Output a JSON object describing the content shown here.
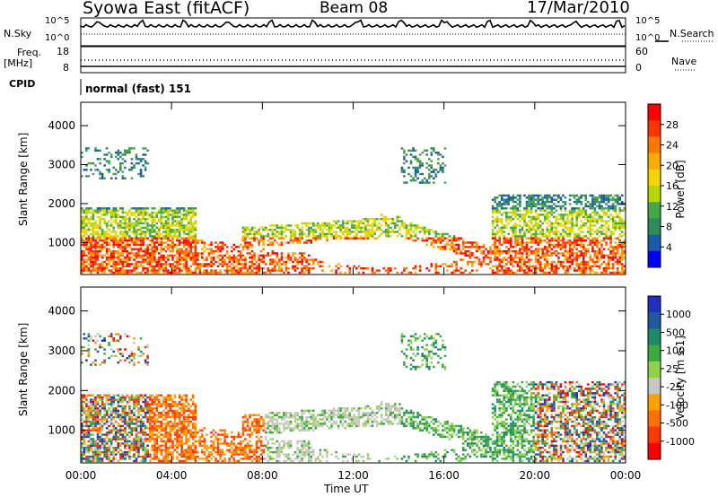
{
  "header": {
    "station": "Syowa East (fitACF)",
    "beam": "Beam 08",
    "date": "17/Mar/2010"
  },
  "status": {
    "nsky_label": "N.Sky",
    "nsearch_label": "N.Search",
    "noise_ticks_left": [
      "10^5",
      "10^0"
    ],
    "noise_ticks_right": [
      "10^5",
      "10^0"
    ],
    "freq_label": "Freq.",
    "freq_unit": "[MHz]",
    "freq_ticks": [
      "18",
      "8"
    ],
    "nave_label": "Nave",
    "nave_ticks": [
      "60",
      "0"
    ],
    "cpid_label": "CPID",
    "cpid_value": "normal (fast) 151"
  },
  "chart_data": [
    {
      "type": "heatmap",
      "name": "power",
      "ylabel": "Slant Range [km]",
      "xlabel": "Time UT",
      "ylim": [
        180,
        4600
      ],
      "yticks": [
        "1000",
        "2000",
        "3000",
        "4000"
      ],
      "xticks": [
        "00:00",
        "04:00",
        "08:00",
        "12:00",
        "16:00",
        "20:00",
        "00:00"
      ],
      "colorbar": {
        "label": "Power [dB]",
        "ticks": [
          "28",
          "24",
          "20",
          "16",
          "12",
          "8",
          "4"
        ],
        "colors": [
          "#ff0000",
          "#ff3300",
          "#ff7700",
          "#ffaa00",
          "#f5d500",
          "#b8d600",
          "#44a844",
          "#2d8c5a",
          "#1a5aa8",
          "#0000ff"
        ]
      }
    },
    {
      "type": "heatmap",
      "name": "velocity",
      "ylabel": "Slant Range [km]",
      "xlabel": "Time UT",
      "ylim": [
        180,
        4600
      ],
      "yticks": [
        "1000",
        "2000",
        "3000",
        "4000"
      ],
      "xticks": [
        "00:00",
        "04:00",
        "08:00",
        "12:00",
        "16:00",
        "20:00",
        "00:00"
      ],
      "colorbar": {
        "label": "Velocity [m s-1]",
        "ticks": [
          "1000",
          "500",
          "100",
          "25",
          "-25",
          "-100",
          "-500",
          "-1000"
        ],
        "colors": [
          "#2030c0",
          "#1e5aa0",
          "#1e8a6a",
          "#3caa3c",
          "#8ed24a",
          "#c8c8c0",
          "#ffa000",
          "#ff7000",
          "#ff3800",
          "#ff0000"
        ]
      }
    }
  ]
}
